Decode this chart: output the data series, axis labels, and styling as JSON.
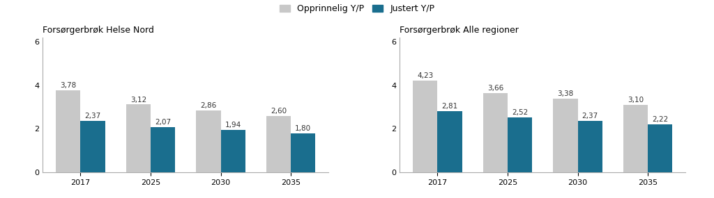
{
  "chart1_title": "Forsørgerbrøk Helse Nord",
  "chart2_title": "Forsørgerbrøk Alle regioner",
  "categories": [
    "2017",
    "2025",
    "2030",
    "2035"
  ],
  "chart1_original": [
    3.78,
    3.12,
    2.86,
    2.6
  ],
  "chart1_adjusted": [
    2.37,
    2.07,
    1.94,
    1.8
  ],
  "chart2_original": [
    4.23,
    3.66,
    3.38,
    3.1
  ],
  "chart2_adjusted": [
    2.81,
    2.52,
    2.37,
    2.22
  ],
  "color_original": "#c8c8c8",
  "color_adjusted": "#1a6e8e",
  "legend_original": "Opprinnelig Y/P",
  "legend_adjusted": "Justert Y/P",
  "ylim": [
    0,
    6.2
  ],
  "yticks": [
    0,
    2,
    4,
    6
  ],
  "bar_width": 0.35,
  "background_color": "#ffffff",
  "label_fontsize": 7.5,
  "title_fontsize": 9,
  "tick_fontsize": 8,
  "legend_fontsize": 9
}
